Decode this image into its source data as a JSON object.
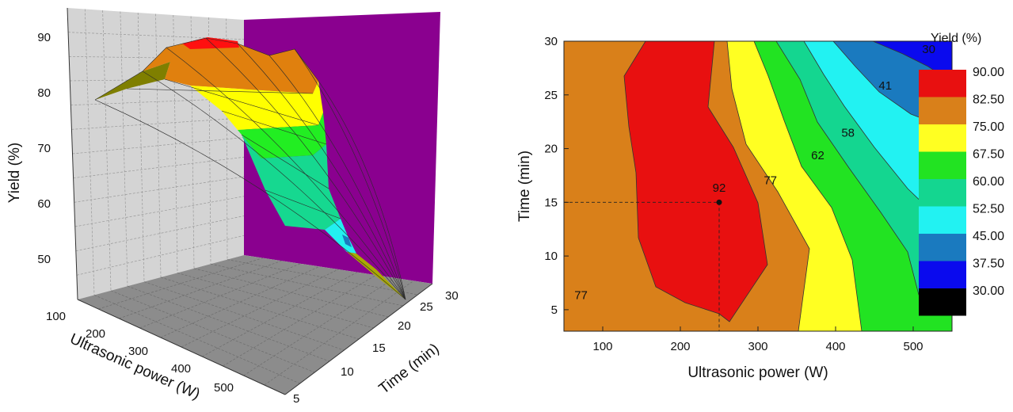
{
  "chart_data": [
    {
      "type": "surface3d",
      "zlabel": "Yield (%)",
      "xlabel": "Ultrasonic power (W)",
      "ylabel": "Time (min)",
      "z_ticks": [
        "50",
        "60",
        "70",
        "80",
        "90"
      ],
      "x_ticks": [
        "100",
        "200",
        "300",
        "400",
        "500"
      ],
      "y_ticks": [
        "5",
        "10",
        "15",
        "20",
        "25",
        "30"
      ],
      "x_range": [
        100,
        550
      ],
      "y_range": [
        5,
        30
      ],
      "z_range": [
        42,
        95
      ],
      "colors": {
        "left_wall": "#d4d4d4",
        "right_wall": "#8a008f",
        "floor": "#8c8c8c",
        "bands": [
          "#7f7f00",
          "#ff1010",
          "#e0800e",
          "#ffff00",
          "#22ee22",
          "#16d890",
          "#22f0f0",
          "#1a7abf"
        ]
      }
    },
    {
      "type": "contour",
      "xlabel": "Ultrasonic power (W)",
      "ylabel": "Time (min)",
      "x_ticks": [
        "100",
        "200",
        "300",
        "400",
        "500"
      ],
      "y_ticks": [
        "5",
        "10",
        "15",
        "20",
        "25",
        "30"
      ],
      "xlim": [
        50,
        550
      ],
      "ylim": [
        3,
        30
      ],
      "legend_title": "Yield (%)",
      "legend_levels": [
        "90.00",
        "82.50",
        "75.00",
        "67.50",
        "60.00",
        "52.50",
        "45.00",
        "37.50",
        "30.00"
      ],
      "legend_colors": [
        "#e81010",
        "#d9801a",
        "#ffff22",
        "#22e322",
        "#14d690",
        "#22f2f2",
        "#1a7abf",
        "#0a0aee",
        "#000000"
      ],
      "contour_labels": [
        {
          "text": "30",
          "x": 520,
          "y": 28.9
        },
        {
          "text": "41",
          "x": 464,
          "y": 25.5
        },
        {
          "text": "58",
          "x": 416,
          "y": 21.1
        },
        {
          "text": "62",
          "x": 377,
          "y": 19.0
        },
        {
          "text": "77",
          "x": 316,
          "y": 16.7
        },
        {
          "text": "92",
          "x": 250,
          "y": 16.0
        },
        {
          "text": "77",
          "x": 72,
          "y": 6.0
        }
      ],
      "optimum_point": {
        "x": 250,
        "y": 15
      }
    }
  ]
}
